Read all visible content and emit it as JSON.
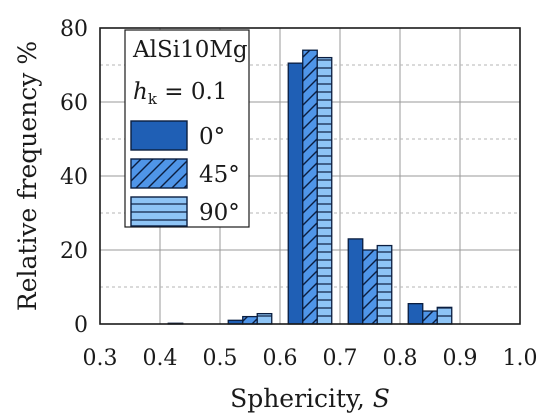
{
  "chart_data": {
    "type": "bar",
    "x": [
      0.35,
      0.45,
      0.55,
      0.65,
      0.75,
      0.85,
      0.95
    ],
    "series": [
      {
        "name": "0°",
        "values": [
          0,
          0.2,
          1.0,
          70.5,
          23.0,
          5.5,
          0
        ],
        "color": "#1f5fb5",
        "pattern": "solid"
      },
      {
        "name": "45°",
        "values": [
          0,
          0,
          2.0,
          74.0,
          20.0,
          3.5,
          0
        ],
        "color": "#4f95e8",
        "pattern": "diagonal-hatch"
      },
      {
        "name": "90°",
        "values": [
          0,
          0,
          2.8,
          72.0,
          21.2,
          4.5,
          0
        ],
        "color": "#8ec4f5",
        "pattern": "horizontal-lines"
      }
    ],
    "xlabel": "Sphericity, ",
    "xlabel_symbol": "S",
    "ylabel": "Relative frequency %",
    "xlim": [
      0.3,
      1.0
    ],
    "ylim": [
      0,
      80
    ],
    "xticks": [
      "0.3",
      "0.4",
      "0.5",
      "0.6",
      "0.7",
      "0.8",
      "0.9",
      "1.0"
    ],
    "yticks": [
      "0",
      "20",
      "40",
      "60",
      "80"
    ],
    "grid": true,
    "legend": {
      "placement": "top-left",
      "title": "AlSi10Mg",
      "param_symbol": "h",
      "param_subscript": "k",
      "param_value": " = 0.1"
    }
  }
}
